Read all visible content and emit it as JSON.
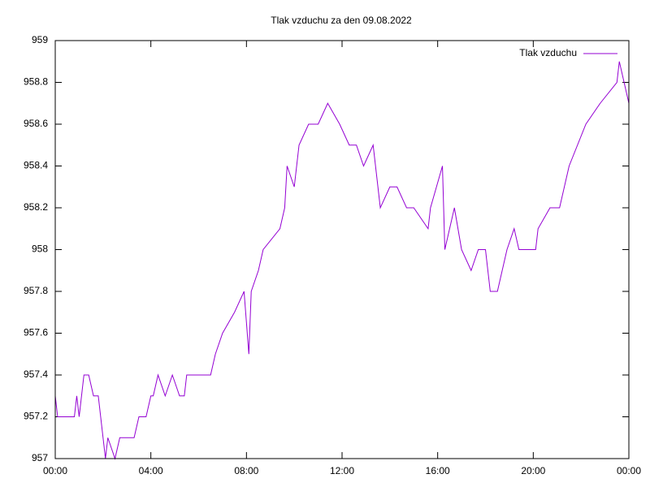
{
  "chart_data": {
    "type": "line",
    "title": "Tlak vzduchu za den 09.08.2022",
    "x": [
      0,
      0.1,
      0.8,
      0.9,
      1.0,
      1.2,
      1.4,
      1.6,
      1.8,
      2.0,
      2.1,
      2.2,
      2.5,
      2.7,
      2.9,
      3.3,
      3.5,
      3.8,
      4.0,
      4.1,
      4.3,
      4.6,
      4.9,
      5.2,
      5.4,
      5.5,
      6.5,
      6.7,
      7.0,
      7.5,
      7.9,
      8.1,
      8.2,
      8.5,
      8.7,
      9.4,
      9.6,
      9.7,
      10.0,
      10.2,
      10.6,
      11.0,
      11.4,
      11.9,
      12.3,
      12.6,
      12.9,
      13.3,
      13.6,
      14.0,
      14.3,
      14.7,
      15.0,
      15.6,
      15.7,
      16.2,
      16.3,
      16.7,
      17.0,
      17.4,
      17.7,
      18.0,
      18.2,
      18.5,
      18.9,
      19.2,
      19.4,
      20.1,
      20.2,
      20.7,
      21.1,
      21.5,
      22.2,
      22.8,
      23.5,
      23.6,
      23.8,
      24.0
    ],
    "series": [
      {
        "name": "Tlak vzduchu",
        "color": "#9400d3",
        "values": [
          957.3,
          957.2,
          957.2,
          957.3,
          957.2,
          957.4,
          957.4,
          957.3,
          957.3,
          957.1,
          957.0,
          957.1,
          957.0,
          957.1,
          957.1,
          957.1,
          957.2,
          957.2,
          957.3,
          957.3,
          957.4,
          957.3,
          957.4,
          957.3,
          957.3,
          957.4,
          957.4,
          957.5,
          957.6,
          957.7,
          957.8,
          957.5,
          957.8,
          957.9,
          958.0,
          958.1,
          958.2,
          958.4,
          958.3,
          958.5,
          958.6,
          958.6,
          958.7,
          958.6,
          958.5,
          958.5,
          958.4,
          958.5,
          958.2,
          958.3,
          958.3,
          958.2,
          958.2,
          958.1,
          958.2,
          958.4,
          958.0,
          958.2,
          958.0,
          957.9,
          958.0,
          958.0,
          957.8,
          957.8,
          958.0,
          958.1,
          958.0,
          958.0,
          958.1,
          958.2,
          958.2,
          958.4,
          958.6,
          958.7,
          958.8,
          958.9,
          958.8,
          958.7
        ]
      }
    ],
    "xlim": [
      0,
      24
    ],
    "xticks": [
      {
        "value": 0,
        "label": "00:00"
      },
      {
        "value": 4,
        "label": "04:00"
      },
      {
        "value": 8,
        "label": "08:00"
      },
      {
        "value": 12,
        "label": "12:00"
      },
      {
        "value": 16,
        "label": "16:00"
      },
      {
        "value": 20,
        "label": "20:00"
      },
      {
        "value": 24,
        "label": "00:00"
      }
    ],
    "ylim": [
      957,
      959
    ],
    "yticks": [
      957,
      957.2,
      957.4,
      957.6,
      957.8,
      958,
      958.2,
      958.4,
      958.6,
      958.8,
      959
    ],
    "legend": "top-right",
    "grid": false
  }
}
